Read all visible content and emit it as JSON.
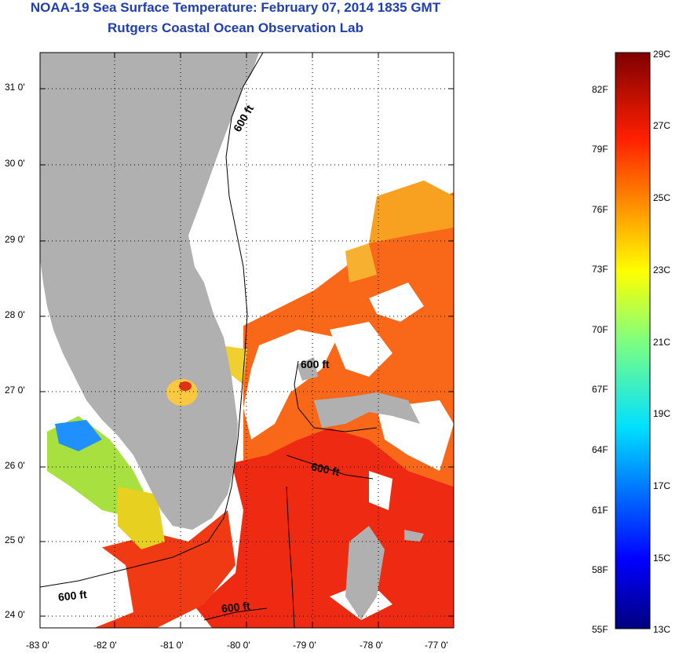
{
  "title": {
    "line1": "NOAA-19 Sea Surface Temperature:  February 07, 2014 1835 GMT",
    "line2": "Rutgers Coastal Ocean Observation Lab"
  },
  "map": {
    "lat_labels": [
      "31 0'",
      "30 0'",
      "29 0'",
      "28 0'",
      "27 0'",
      "26 0'",
      "25 0'",
      "24 0'"
    ],
    "lon_labels": [
      "-83 0'",
      "-82 0'",
      "-81 0'",
      "-80 0'",
      "-79 0'",
      "-78 0'",
      "-77 0'"
    ],
    "contour_labels": [
      "600 ft",
      "600 ft",
      "600 ft",
      "600 ft",
      "600 ft"
    ],
    "land_color": "#b0b0b0",
    "ocean_warm_color": "#ef2a12",
    "ocean_orange_color": "#f86818"
  },
  "colorbar": {
    "celsius_labels": [
      "29C",
      "27C",
      "25C",
      "23C",
      "21C",
      "19C",
      "17C",
      "15C",
      "13C"
    ],
    "fahrenheit_labels": [
      "82F",
      "79F",
      "76F",
      "73F",
      "70F",
      "67F",
      "64F",
      "61F",
      "58F",
      "55F"
    ]
  }
}
